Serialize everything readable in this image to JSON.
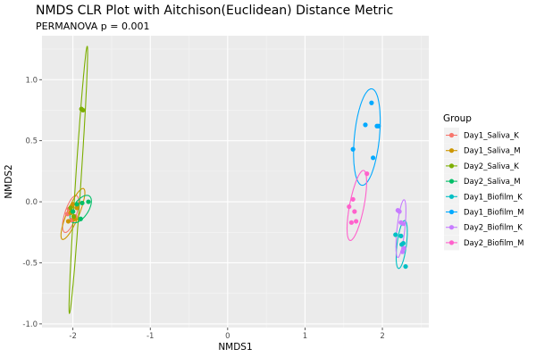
{
  "chart_data": {
    "type": "scatter",
    "title": "NMDS CLR Plot with Aitchison(Euclidean) Distance Metric",
    "subtitle": "PERMANOVA p = 0.001",
    "xlabel": "NMDS1",
    "ylabel": "NMDS2",
    "xlim": [
      -2.4,
      2.6
    ],
    "ylim": [
      -1.03,
      1.36
    ],
    "xticks": [
      -2,
      -1,
      0,
      1,
      2
    ],
    "xtick_labels": [
      "-2",
      "-1",
      "0",
      "1",
      "2"
    ],
    "yticks": [
      -1.0,
      -0.5,
      0.0,
      0.5,
      1.0
    ],
    "ytick_labels": [
      "-1.0",
      "-0.5",
      "0.0",
      "0.5",
      "1.0"
    ],
    "grid": true,
    "legend": {
      "title": "Group",
      "position": "right"
    },
    "series": [
      {
        "name": "Day1_Saliva_K",
        "color": "#F8766D",
        "x": [
          -2.05,
          -2.0,
          -1.97,
          -2.02,
          -2.07
        ],
        "y": [
          -0.06,
          -0.08,
          -0.12,
          -0.15,
          -0.1
        ],
        "ellipse": {
          "cx": -2.03,
          "cy": -0.1,
          "rx": 0.17,
          "ry": 0.07,
          "angle_deg": 60
        }
      },
      {
        "name": "Day1_Saliva_M",
        "color": "#CD9600",
        "x": [
          -2.0,
          -1.95,
          -2.03,
          -1.98,
          -2.06,
          -2.02
        ],
        "y": [
          -0.02,
          -0.05,
          -0.09,
          -0.14,
          -0.16,
          -0.04
        ],
        "ellipse": {
          "cx": -2.0,
          "cy": -0.1,
          "rx": 0.25,
          "ry": 0.07,
          "angle_deg": 55
        }
      },
      {
        "name": "Day2_Saliva_K",
        "color": "#7CAE00",
        "x": [
          -1.89,
          -1.87,
          -2.01,
          -1.99,
          -2.03
        ],
        "y": [
          0.76,
          0.75,
          -0.08,
          -0.12,
          -0.05
        ],
        "ellipse": {
          "cx": -1.93,
          "cy": 0.18,
          "rx": 1.1,
          "ry": 0.035,
          "angle_deg": 84
        }
      },
      {
        "name": "Day2_Saliva_M",
        "color": "#00BE67",
        "x": [
          -1.8,
          -1.88,
          -1.95,
          -1.9,
          -2.0
        ],
        "y": [
          0.0,
          -0.01,
          -0.02,
          -0.14,
          -0.08
        ],
        "ellipse": {
          "cx": -1.9,
          "cy": -0.06,
          "rx": 0.16,
          "ry": 0.08,
          "angle_deg": 35
        }
      },
      {
        "name": "Day1_Biofilm_K",
        "color": "#00BFC4",
        "x": [
          2.17,
          2.24,
          2.25,
          2.27,
          2.3
        ],
        "y": [
          -0.27,
          -0.28,
          -0.35,
          -0.34,
          -0.53
        ],
        "ellipse": {
          "cx": 2.25,
          "cy": -0.35,
          "rx": 0.2,
          "ry": 0.06,
          "angle_deg": 78
        }
      },
      {
        "name": "Day1_Biofilm_M",
        "color": "#00A9FF",
        "x": [
          1.86,
          1.78,
          1.93,
          1.95,
          1.62,
          1.88
        ],
        "y": [
          0.81,
          0.63,
          0.62,
          0.62,
          0.43,
          0.36
        ],
        "ellipse": {
          "cx": 1.8,
          "cy": 0.53,
          "rx": 0.4,
          "ry": 0.16,
          "angle_deg": 80
        }
      },
      {
        "name": "Day2_Biofilm_K",
        "color": "#C77CFF",
        "x": [
          2.2,
          2.22,
          2.24,
          2.27,
          2.28,
          2.26
        ],
        "y": [
          -0.07,
          -0.08,
          -0.17,
          -0.18,
          -0.38,
          -0.41
        ],
        "ellipse": {
          "cx": 2.24,
          "cy": -0.22,
          "rx": 0.24,
          "ry": 0.05,
          "angle_deg": 80
        }
      },
      {
        "name": "Day2_Biofilm_M",
        "color": "#FF61CC",
        "x": [
          1.8,
          1.62,
          1.57,
          1.64,
          1.6,
          1.66
        ],
        "y": [
          0.23,
          0.02,
          -0.04,
          -0.08,
          -0.17,
          -0.16
        ],
        "ellipse": {
          "cx": 1.67,
          "cy": -0.03,
          "rx": 0.3,
          "ry": 0.09,
          "angle_deg": 72
        }
      }
    ]
  }
}
